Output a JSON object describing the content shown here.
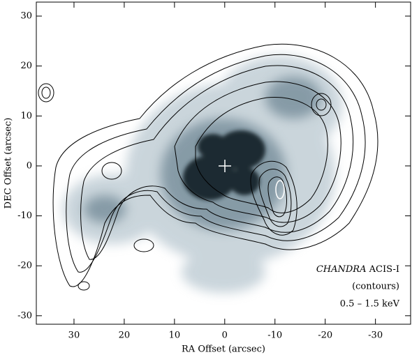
{
  "chart_data": {
    "type": "image",
    "xlabel": "RA Offset (arcsec)",
    "ylabel": "DEC Offset (arcsec)",
    "xlim": [
      37.5,
      -37
    ],
    "ylim": [
      -31.7,
      32.8
    ],
    "xticks": [
      30,
      20,
      10,
      0,
      -10,
      -20,
      -30
    ],
    "yticks": [
      -30,
      -20,
      -10,
      0,
      10,
      20,
      30
    ],
    "instrument": "CHANDRA",
    "annotations": [
      "ACIS-I",
      "(contours)",
      "0.5 – 1.5 keV"
    ]
  }
}
